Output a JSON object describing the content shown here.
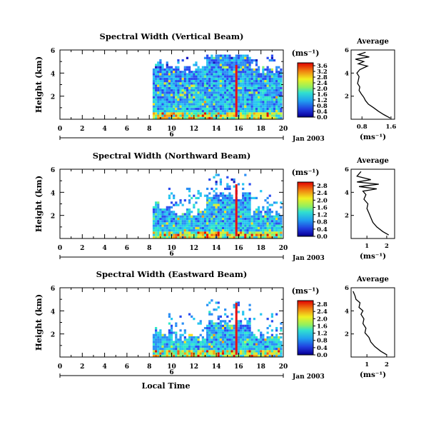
{
  "chart_data": [
    {
      "type": "heatmap",
      "title": "Spectral Width (Vertical Beam)",
      "ylabel": "Height (km)",
      "xlim": [
        0,
        20
      ],
      "ylim": [
        0,
        6
      ],
      "xticks": [
        "0",
        "2",
        "4",
        "6",
        "8",
        "10",
        "12",
        "14",
        "16",
        "18",
        "20"
      ],
      "yticks": [
        "2",
        "4",
        "6"
      ],
      "date_label": "Jan 2003",
      "date_day": "6",
      "colorbar": {
        "unit": "(ms⁻¹)",
        "ticks": [
          "0.0",
          "0.4",
          "0.8",
          "1.2",
          "1.6",
          "2.0",
          "2.4",
          "2.8",
          "3.2",
          "3.6"
        ],
        "range": [
          0,
          3.8
        ]
      },
      "profile": {
        "title": "Average",
        "xlabel": "(ms⁻¹)",
        "xticks": [
          "0.8",
          "1.6"
        ],
        "xlim": [
          0.5,
          1.7
        ],
        "yticks": [
          "2",
          "4",
          "6"
        ],
        "points": [
          [
            1.58,
            0.1
          ],
          [
            1.4,
            0.4
          ],
          [
            1.25,
            0.7
          ],
          [
            1.12,
            1.0
          ],
          [
            0.98,
            1.3
          ],
          [
            0.9,
            1.6
          ],
          [
            0.85,
            1.9
          ],
          [
            0.78,
            2.2
          ],
          [
            0.72,
            2.5
          ],
          [
            0.74,
            2.8
          ],
          [
            0.68,
            3.1
          ],
          [
            0.7,
            3.4
          ],
          [
            0.72,
            3.7
          ],
          [
            0.66,
            4.0
          ],
          [
            0.74,
            4.3
          ],
          [
            0.95,
            4.6
          ],
          [
            0.7,
            4.8
          ],
          [
            0.85,
            5.0
          ],
          [
            0.62,
            5.2
          ],
          [
            1.0,
            5.4
          ],
          [
            0.7,
            5.6
          ],
          [
            0.9,
            5.8
          ]
        ]
      },
      "profile_ylabel_hidden": true,
      "fill_top": 4.2
    },
    {
      "type": "heatmap",
      "title": "Spectral Width (Northward Beam)",
      "ylabel": "Height (km)",
      "xlim": [
        0,
        20
      ],
      "ylim": [
        0,
        6
      ],
      "xticks": [
        "0",
        "2",
        "4",
        "6",
        "8",
        "10",
        "12",
        "14",
        "16",
        "18",
        "20"
      ],
      "yticks": [
        "2",
        "4",
        "6"
      ],
      "date_label": "Jan 2003",
      "date_day": "6",
      "colorbar": {
        "unit": "(ms⁻¹)",
        "ticks": [
          "0.0",
          "0.4",
          "0.8",
          "1.2",
          "1.6",
          "2.0",
          "2.4",
          "2.8"
        ],
        "range": [
          0,
          3.0
        ]
      },
      "profile": {
        "title": "Average",
        "xlabel": "(ms⁻¹)",
        "xticks": [
          "1",
          "2"
        ],
        "xlim": [
          0.2,
          2.4
        ],
        "yticks": [
          "2",
          "4",
          "6"
        ],
        "points": [
          [
            2.1,
            0.3
          ],
          [
            1.8,
            0.6
          ],
          [
            1.5,
            1.0
          ],
          [
            1.3,
            1.4
          ],
          [
            1.2,
            1.8
          ],
          [
            1.1,
            2.2
          ],
          [
            1.0,
            2.6
          ],
          [
            1.05,
            3.0
          ],
          [
            0.85,
            3.4
          ],
          [
            0.95,
            3.8
          ],
          [
            0.8,
            4.1
          ],
          [
            1.5,
            4.3
          ],
          [
            0.6,
            4.5
          ],
          [
            1.6,
            4.7
          ],
          [
            0.5,
            4.9
          ],
          [
            1.2,
            5.1
          ],
          [
            0.5,
            5.4
          ],
          [
            0.7,
            5.8
          ]
        ]
      },
      "fill_top": 2.2
    },
    {
      "type": "heatmap",
      "title": "Spectral Width (Eastward Beam)",
      "ylabel": "Height (km)",
      "xlim": [
        0,
        20
      ],
      "ylim": [
        0,
        6
      ],
      "xticks": [
        "0",
        "2",
        "4",
        "6",
        "8",
        "10",
        "12",
        "14",
        "16",
        "18",
        "20"
      ],
      "yticks": [
        "2",
        "4",
        "6"
      ],
      "date_label": "Jan 2003",
      "date_day": "6",
      "xlabel": "Local Time",
      "colorbar": {
        "unit": "(ms⁻¹)",
        "ticks": [
          "0.0",
          "0.4",
          "0.8",
          "1.2",
          "1.6",
          "2.0",
          "2.4",
          "2.8"
        ],
        "range": [
          0,
          3.0
        ]
      },
      "profile": {
        "title": "Average",
        "xlabel": "(ms⁻¹)",
        "xticks": [
          "1",
          "2"
        ],
        "xlim": [
          0.2,
          2.4
        ],
        "yticks": [
          "2",
          "4",
          "6"
        ],
        "points": [
          [
            2.0,
            0.2
          ],
          [
            1.7,
            0.5
          ],
          [
            1.4,
            0.9
          ],
          [
            1.2,
            1.3
          ],
          [
            1.1,
            1.7
          ],
          [
            0.9,
            2.1
          ],
          [
            0.95,
            2.5
          ],
          [
            0.8,
            2.9
          ],
          [
            0.85,
            3.3
          ],
          [
            0.7,
            3.7
          ],
          [
            0.8,
            4.0
          ],
          [
            0.6,
            4.3
          ],
          [
            0.65,
            4.7
          ],
          [
            0.45,
            5.0
          ],
          [
            0.4,
            5.3
          ],
          [
            0.3,
            5.7
          ]
        ]
      },
      "fill_top": 1.6
    }
  ]
}
